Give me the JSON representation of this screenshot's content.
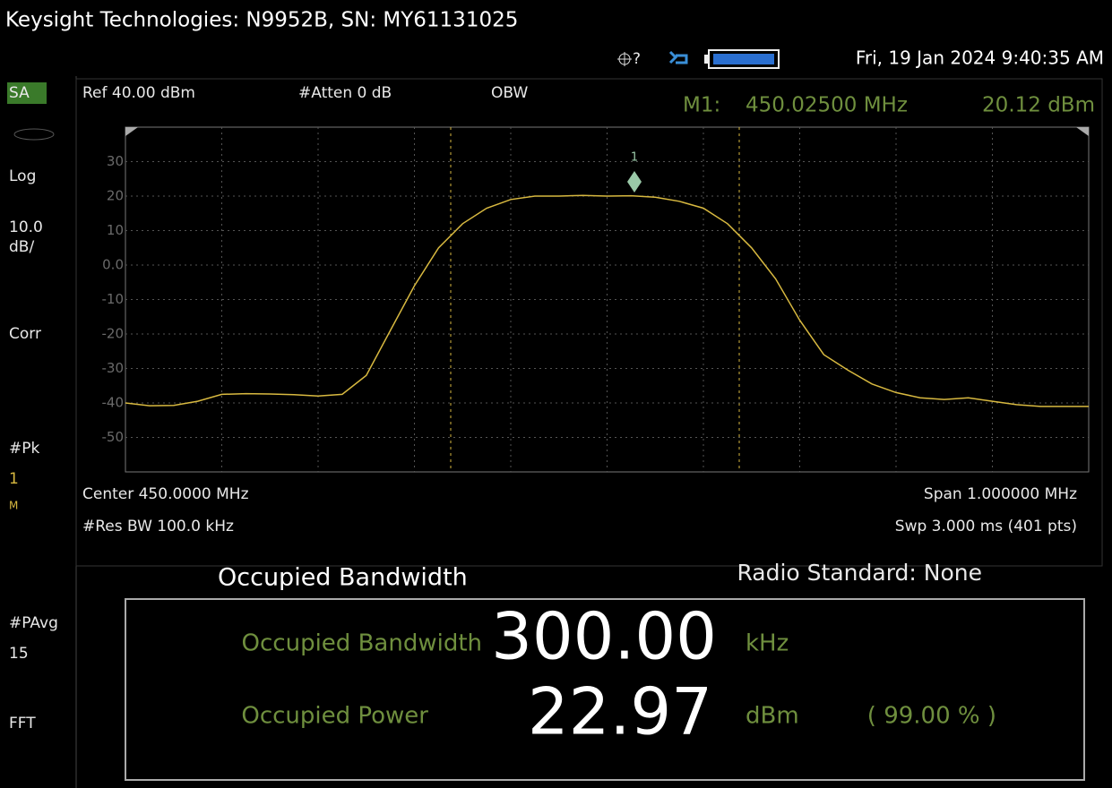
{
  "header": {
    "title": "Keysight Technologies: N9952B, SN: MY61131025",
    "help": "?",
    "datetime": "Fri, 19 Jan 2024 9:40:35 AM"
  },
  "side_panel": [
    "SA",
    "Log",
    "10.0",
    "dB/",
    "Corr",
    "#Pk",
    "1",
    "M",
    "#PAvg",
    "15",
    "FFT"
  ],
  "settings": {
    "ref": "Ref 40.00 dBm",
    "atten": "#Atten 0 dB",
    "mode": "OBW",
    "marker_name": "M1:",
    "marker_freq": "450.02500 MHz",
    "marker_level": "20.12 dBm"
  },
  "chart_data": {
    "type": "line",
    "marker_label": "1",
    "values": [
      -40,
      -40.8,
      -40.7,
      -39.5,
      -37.5,
      -37.3,
      -37.4,
      -37.6,
      -38,
      -37.5,
      -32,
      -19,
      -6,
      5,
      12,
      16.5,
      19,
      20,
      20,
      20.2,
      20,
      20.1,
      19.7,
      18.5,
      16.5,
      12,
      5,
      -4,
      -16,
      -26,
      -30.5,
      -34.5,
      -37,
      -38.5,
      -39,
      -38.5,
      -39.5,
      -40.5,
      -41,
      -41,
      -41
    ],
    "color": "#d8b940",
    "ylim": [
      -60,
      40
    ],
    "yticks": [
      30,
      20,
      10,
      {
        "value": 0,
        "label": "0.0"
      },
      -10,
      -20,
      -30,
      -40,
      -50
    ],
    "grid": true,
    "center": "Center 450.0000 MHz",
    "res_bw": "#Res BW 100.0 kHz",
    "span": "Span 1.000000 MHz",
    "sweep": "Swp 3.000 ms (401 pts)"
  },
  "measurement": {
    "title": "Occupied Bandwidth",
    "standard": "Radio Standard: None",
    "rows": [
      {
        "label": "Occupied Bandwidth",
        "value": "300.00",
        "unit": "kHz"
      },
      {
        "label": "Occupied Power",
        "value": "22.97",
        "unit": "dBm",
        "extra": "( 99.00 % )"
      }
    ]
  }
}
